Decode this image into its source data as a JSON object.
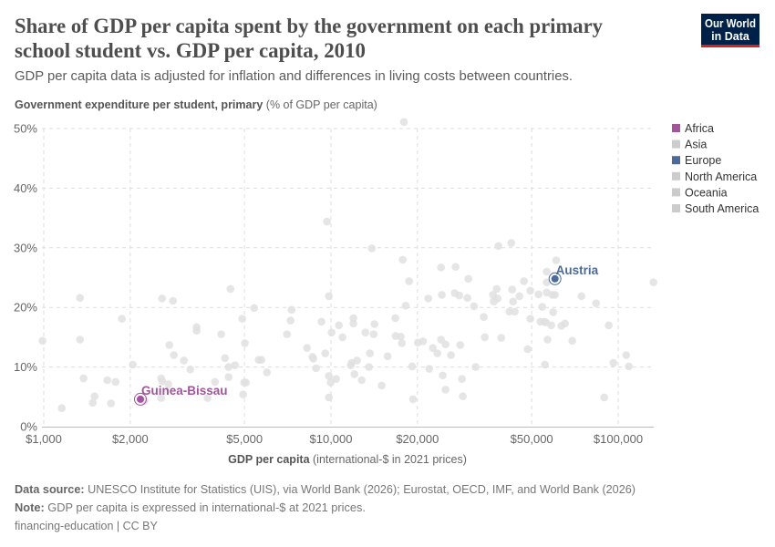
{
  "header": {
    "title_line1": "Share of GDP per capita spent by the government on each primary",
    "title_line2": "school student vs. GDP per capita, 2010",
    "subtitle": "GDP per capita data is adjusted for inflation and differences in living costs between countries.",
    "logo_line1": "Our World",
    "logo_line2": "in Data"
  },
  "footer": {
    "source_label": "Data source:",
    "source_text": "UNESCO Institute for Statistics (UIS), via World Bank (2026); Eurostat, OECD, IMF, and World Bank (2026)",
    "note_label": "Note:",
    "note_text": "GDP per capita is expressed in international-$ at 2021 prices.",
    "slug": "financing-education | CC BY"
  },
  "chart_data": {
    "type": "scatter",
    "title": "Share of GDP per capita spent by the government on each primary school student vs. GDP per capita, 2010",
    "ylabel_bold": "Government expenditure per student, primary",
    "ylabel_unit": "(% of GDP per capita)",
    "xlabel_bold": "GDP per capita",
    "xlabel_unit": "(international-$ in 2021 prices)",
    "x_scale": "log",
    "xlim": [
      1000,
      133000
    ],
    "ylim": [
      0,
      50
    ],
    "grid": true,
    "x_ticks": [
      {
        "value": 1000,
        "label": "$1,000"
      },
      {
        "value": 2000,
        "label": "$2,000"
      },
      {
        "value": 5000,
        "label": "$5,000"
      },
      {
        "value": 10000,
        "label": "$10,000"
      },
      {
        "value": 20000,
        "label": "$20,000"
      },
      {
        "value": 50000,
        "label": "$50,000"
      },
      {
        "value": 100000,
        "label": "$100,000"
      }
    ],
    "y_ticks": [
      {
        "value": 0,
        "label": "0%"
      },
      {
        "value": 10,
        "label": "10%"
      },
      {
        "value": 20,
        "label": "20%"
      },
      {
        "value": 30,
        "label": "30%"
      },
      {
        "value": 40,
        "label": "40%"
      },
      {
        "value": 50,
        "label": "50%"
      }
    ],
    "legend_placement": "right",
    "legend": [
      {
        "name": "Africa",
        "color": "#a2559c"
      },
      {
        "name": "Asia",
        "color": "#cccccc"
      },
      {
        "name": "Europe",
        "color": "#4c6a9c"
      },
      {
        "name": "North America",
        "color": "#cccccc"
      },
      {
        "name": "Oceania",
        "color": "#cccccc"
      },
      {
        "name": "South America",
        "color": "#cccccc"
      }
    ],
    "background_color": "#e0e0e0",
    "highlighted": [
      {
        "name": "Guinea-Bissau",
        "continent": "Africa",
        "x": 2170,
        "y": 4.6,
        "color": "#a2559c"
      },
      {
        "name": "Austria",
        "continent": "Europe",
        "x": 60250,
        "y": 24.8,
        "color": "#4c6a9c"
      }
    ],
    "points": [
      [
        990,
        14.4
      ],
      [
        1337,
        21.6
      ],
      [
        1337,
        14.6
      ],
      [
        1376,
        8.1
      ],
      [
        1155,
        3.1
      ],
      [
        1481,
        4.0
      ],
      [
        1503,
        5.1
      ],
      [
        1665,
        7.8
      ],
      [
        1714,
        3.9
      ],
      [
        1778,
        7.5
      ],
      [
        1871,
        18.1
      ],
      [
        2042,
        10.4
      ],
      [
        2245,
        4.3
      ],
      [
        2562,
        8.1
      ],
      [
        2588,
        7.6
      ],
      [
        2580,
        21.5
      ],
      [
        2818,
        21.1
      ],
      [
        2737,
        13.7
      ],
      [
        2838,
        12.0
      ],
      [
        2716,
        7.1
      ],
      [
        2562,
        4.8
      ],
      [
        3075,
        11.1
      ],
      [
        3236,
        9.6
      ],
      [
        3406,
        16.7
      ],
      [
        3406,
        16.1
      ],
      [
        3720,
        4.8
      ],
      [
        3945,
        7.5
      ],
      [
        4150,
        15.5
      ],
      [
        4275,
        11.5
      ],
      [
        4401,
        10.0
      ],
      [
        4401,
        8.3
      ],
      [
        4467,
        23.1
      ],
      [
        4634,
        10.3
      ],
      [
        4909,
        18.1
      ],
      [
        5013,
        14.0
      ],
      [
        4943,
        5.4
      ],
      [
        4983,
        7.4
      ],
      [
        5058,
        7.4
      ],
      [
        5400,
        19.9
      ],
      [
        5600,
        11.2
      ],
      [
        5727,
        11.2
      ],
      [
        5983,
        9.1
      ],
      [
        7030,
        15.5
      ],
      [
        7230,
        17.8
      ],
      [
        7290,
        19.6
      ],
      [
        8250,
        13.2
      ],
      [
        8620,
        11.7
      ],
      [
        8685,
        11.4
      ],
      [
        8875,
        9.8
      ],
      [
        9270,
        17.6
      ],
      [
        9550,
        12.3
      ],
      [
        9685,
        34.4
      ],
      [
        9833,
        21.9
      ],
      [
        9833,
        8.5
      ],
      [
        9977,
        7.4
      ],
      [
        9833,
        4.9
      ],
      [
        10050,
        15.8
      ],
      [
        10420,
        8.0
      ],
      [
        10660,
        17.0
      ],
      [
        10970,
        15.0
      ],
      [
        11720,
        10.3
      ],
      [
        11800,
        10.7
      ],
      [
        11970,
        18.2
      ],
      [
        11970,
        17.3
      ],
      [
        12070,
        8.8
      ],
      [
        12330,
        11.1
      ],
      [
        12790,
        7.8
      ],
      [
        13180,
        15.8
      ],
      [
        13560,
        10.0
      ],
      [
        13660,
        12.3
      ],
      [
        13870,
        29.9
      ],
      [
        14070,
        15.5
      ],
      [
        14170,
        17.2
      ],
      [
        15020,
        6.9
      ],
      [
        15750,
        11.8
      ],
      [
        17950,
        51.1
      ],
      [
        17780,
        28.0
      ],
      [
        18710,
        24.4
      ],
      [
        18200,
        20.3
      ],
      [
        16760,
        18.2
      ],
      [
        16800,
        15.2
      ],
      [
        17500,
        15.1
      ],
      [
        17650,
        14.0
      ],
      [
        20070,
        14.1
      ],
      [
        20920,
        14.3
      ],
      [
        19170,
        10.1
      ],
      [
        19310,
        4.6
      ],
      [
        21810,
        21.5
      ],
      [
        24160,
        26.7
      ],
      [
        24330,
        22.1
      ],
      [
        27160,
        26.8
      ],
      [
        26970,
        22.4
      ],
      [
        27970,
        22.0
      ],
      [
        29860,
        21.6
      ],
      [
        30080,
        24.8
      ],
      [
        31480,
        20.2
      ],
      [
        34040,
        18.4
      ],
      [
        34320,
        15.0
      ],
      [
        22630,
        13.2
      ],
      [
        23470,
        12.3
      ],
      [
        24160,
        14.6
      ],
      [
        25060,
        13.8
      ],
      [
        26180,
        12.0
      ],
      [
        28180,
        13.7
      ],
      [
        21980,
        9.7
      ],
      [
        24500,
        8.6
      ],
      [
        25060,
        6.2
      ],
      [
        28580,
        8.0
      ],
      [
        28780,
        5.1
      ],
      [
        31900,
        10.0
      ],
      [
        38280,
        30.3
      ],
      [
        42430,
        30.8
      ],
      [
        36650,
        22.1
      ],
      [
        37750,
        23.1
      ],
      [
        38020,
        21.5
      ],
      [
        36900,
        21.0
      ],
      [
        39170,
        14.9
      ],
      [
        42760,
        23.0
      ],
      [
        43060,
        21.0
      ],
      [
        45300,
        21.9
      ],
      [
        41800,
        19.3
      ],
      [
        43650,
        19.3
      ],
      [
        46990,
        24.4
      ],
      [
        49450,
        22.8
      ],
      [
        52800,
        22.2
      ],
      [
        49450,
        18.1
      ],
      [
        48400,
        13.0
      ],
      [
        54400,
        20.1
      ],
      [
        56380,
        26.0
      ],
      [
        56380,
        24.2
      ],
      [
        56380,
        22.5
      ],
      [
        60830,
        27.9
      ],
      [
        58950,
        22.1
      ],
      [
        60250,
        22.1
      ],
      [
        59370,
        19.2
      ],
      [
        53600,
        17.6
      ],
      [
        55200,
        17.6
      ],
      [
        55990,
        17.5
      ],
      [
        58480,
        17.0
      ],
      [
        63420,
        16.9
      ],
      [
        65290,
        17.3
      ],
      [
        56750,
        14.6
      ],
      [
        69200,
        14.4
      ],
      [
        55590,
        10.4
      ],
      [
        74500,
        21.9
      ],
      [
        83760,
        20.7
      ],
      [
        92700,
        17.0
      ],
      [
        89400,
        4.9
      ],
      [
        96200,
        10.7
      ],
      [
        106600,
        12.0
      ],
      [
        108900,
        10.1
      ],
      [
        132700,
        24.2
      ]
    ]
  }
}
